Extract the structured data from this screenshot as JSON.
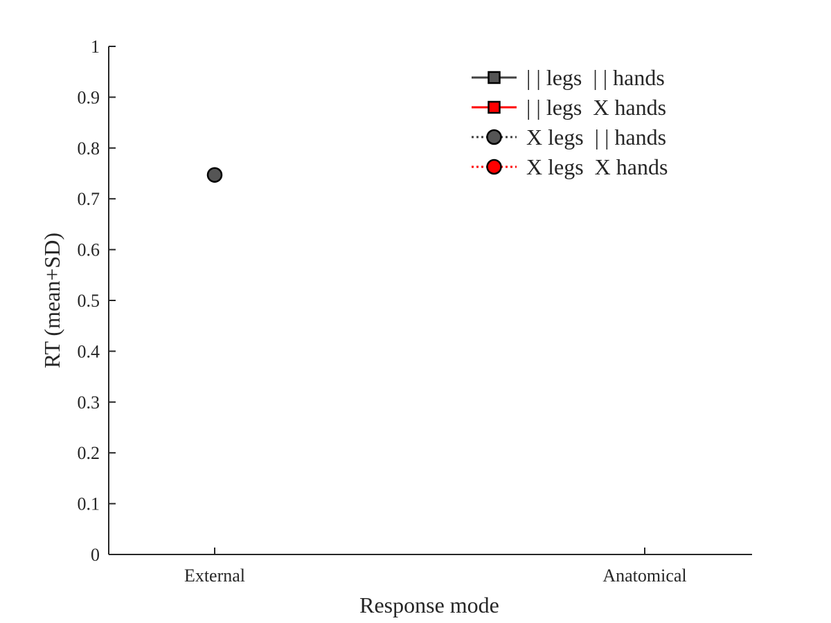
{
  "chart_data": {
    "type": "line",
    "xlabel": "Response mode",
    "ylabel": "RT (mean+SD)",
    "categories": [
      "External",
      "Anatomical"
    ],
    "ylim": [
      0,
      1
    ],
    "yticks": [
      "0",
      "0.1",
      "0.2",
      "0.3",
      "0.4",
      "0.5",
      "0.6",
      "0.7",
      "0.8",
      "0.9",
      "1"
    ],
    "grid": false,
    "legend_position": "top-right",
    "series": [
      {
        "name": "| | legs  | | hands",
        "color": "#404040",
        "marker": "square",
        "line_style": "solid",
        "values": [
          null,
          null
        ]
      },
      {
        "name": "| | legs  X hands",
        "color": "#ff0000",
        "marker": "square",
        "line_style": "solid",
        "values": [
          null,
          null
        ]
      },
      {
        "name": "X legs  | | hands",
        "color": "#404040",
        "marker": "circle",
        "line_style": "dotted",
        "values": [
          0.747,
          null
        ]
      },
      {
        "name": "X legs  X hands",
        "color": "#ff0000",
        "marker": "circle",
        "line_style": "dotted",
        "values": [
          null,
          null
        ]
      }
    ]
  }
}
